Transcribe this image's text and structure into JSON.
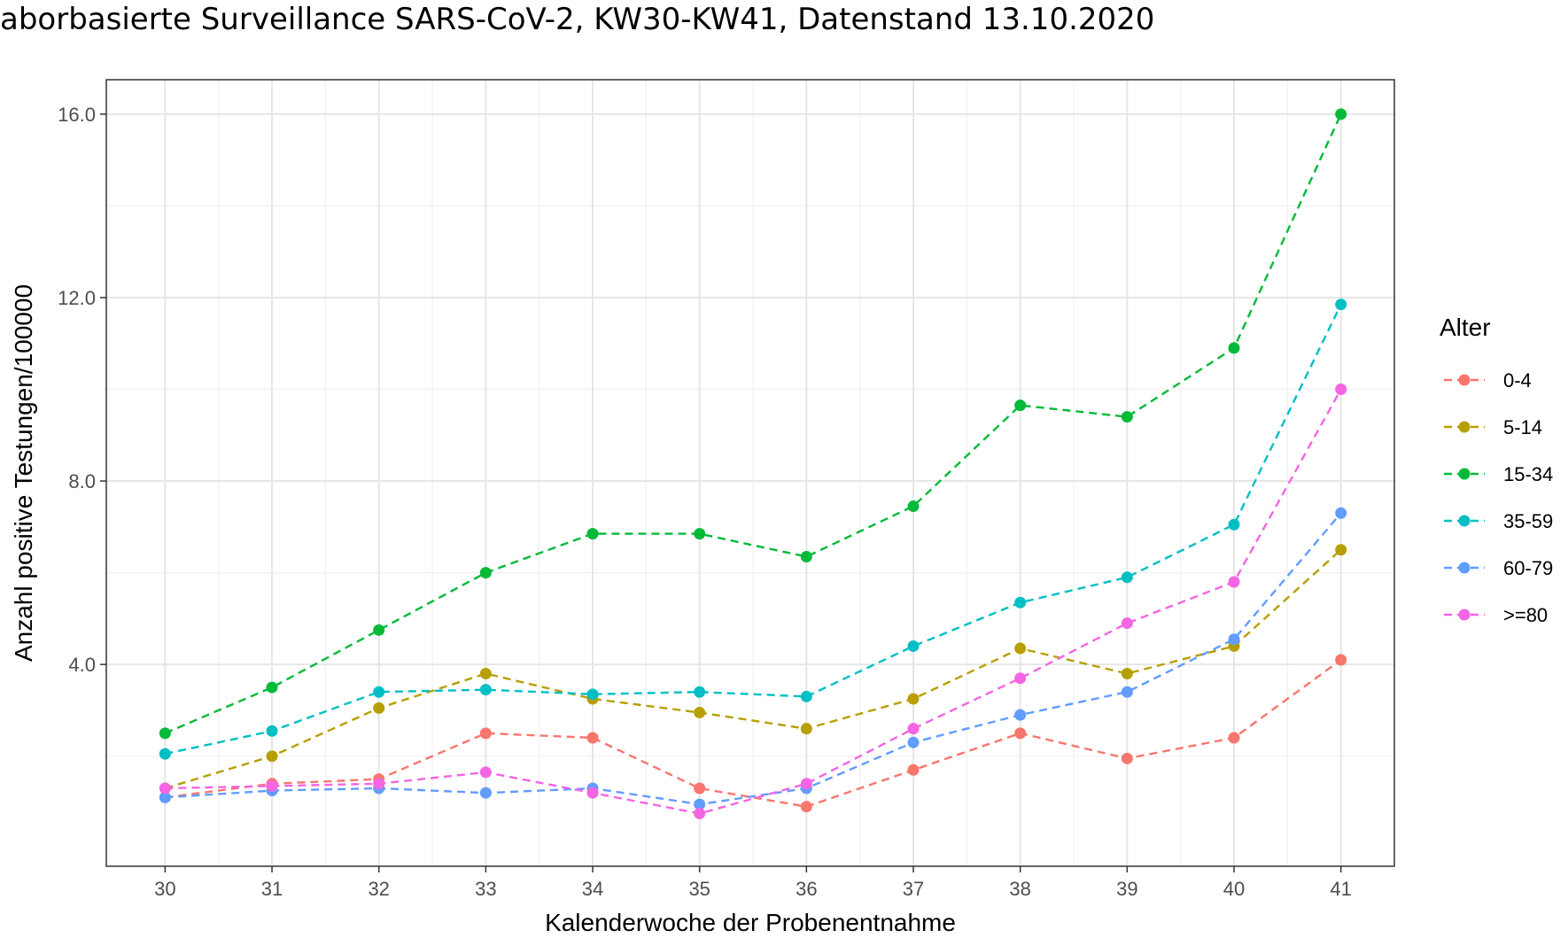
{
  "chart_data": {
    "type": "line",
    "title": "aborbasierte Surveillance SARS-CoV-2, KW30-KW41, Datenstand 13.10.2020",
    "xlabel": "Kalenderwoche der Probenentnahme",
    "ylabel": "Anzahl positive Testungen/100000",
    "x": [
      30,
      31,
      32,
      33,
      34,
      35,
      36,
      37,
      38,
      39,
      40,
      41
    ],
    "x_tick_labels": [
      "30",
      "31",
      "32",
      "33",
      "34",
      "35",
      "36",
      "37",
      "38",
      "39",
      "40",
      "41"
    ],
    "y_ticks": [
      4.0,
      8.0,
      12.0,
      16.0
    ],
    "y_tick_labels": [
      "4.0",
      "8.0",
      "12.0",
      "16.0"
    ],
    "xlim": [
      29.45,
      41.5
    ],
    "ylim": [
      -0.4,
      16.75
    ],
    "grid": true,
    "line_style": "dashed",
    "legend": {
      "title": "Alter",
      "position": "right"
    },
    "series": [
      {
        "name": "0-4",
        "color": "#F8766D",
        "values": [
          1.1,
          1.4,
          1.5,
          2.5,
          2.4,
          1.3,
          0.9,
          1.7,
          2.5,
          1.95,
          2.4,
          4.1
        ]
      },
      {
        "name": "5-14",
        "color": "#B79F00",
        "values": [
          1.3,
          2.0,
          3.05,
          3.8,
          3.25,
          2.95,
          2.6,
          3.25,
          4.35,
          3.8,
          4.4,
          6.5
        ]
      },
      {
        "name": "15-34",
        "color": "#00BA38",
        "values": [
          2.5,
          3.5,
          4.75,
          6.0,
          6.85,
          6.85,
          6.35,
          7.45,
          9.65,
          9.4,
          10.9,
          16.0
        ]
      },
      {
        "name": "35-59",
        "color": "#00BFC4",
        "values": [
          2.05,
          2.55,
          3.4,
          3.45,
          3.35,
          3.4,
          3.3,
          4.4,
          5.35,
          5.9,
          7.05,
          11.85
        ]
      },
      {
        "name": "60-79",
        "color": "#619CFF",
        "values": [
          1.1,
          1.25,
          1.3,
          1.2,
          1.3,
          0.95,
          1.3,
          2.3,
          2.9,
          3.4,
          4.55,
          7.3
        ]
      },
      {
        "name": ">=80",
        "color": "#F564E3",
        "values": [
          1.3,
          1.35,
          1.4,
          1.65,
          1.2,
          0.75,
          1.4,
          2.6,
          3.7,
          4.9,
          5.8,
          10.0
        ]
      }
    ]
  }
}
